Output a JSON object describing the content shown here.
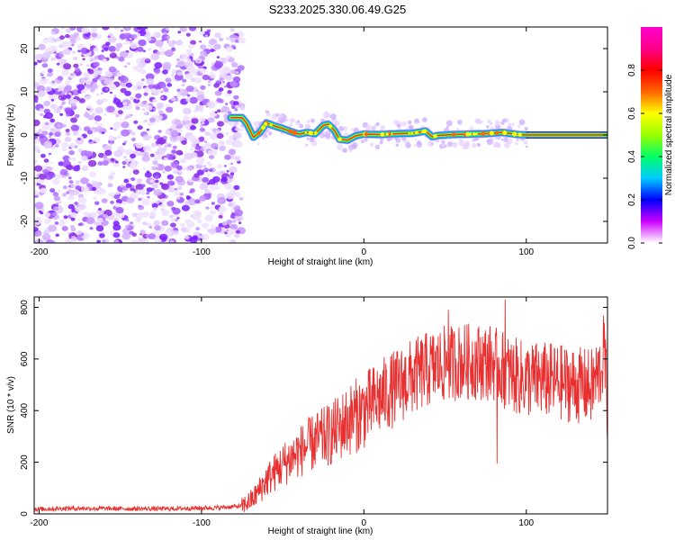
{
  "title": "S233.2025.330.06.49.G25",
  "chart_data": [
    {
      "type": "heatmap",
      "name": "spectrogram",
      "xlabel": "Height of straight line (km)",
      "ylabel": "Frequency (Hz)",
      "xlim": [
        -203,
        150
      ],
      "ylim": [
        -25,
        25
      ],
      "xticks": [
        -200,
        -100,
        0,
        100
      ],
      "yticks": [
        -20,
        -10,
        0,
        10,
        20
      ],
      "noise_region_x": [
        -203,
        -75
      ],
      "ridge": [
        [
          -82,
          4
        ],
        [
          -75,
          4
        ],
        [
          -72,
          2.6
        ],
        [
          -70,
          1
        ],
        [
          -68,
          -0.5
        ],
        [
          -64,
          0.6
        ],
        [
          -60,
          2.8
        ],
        [
          -56,
          2.2
        ],
        [
          -50,
          1.5
        ],
        [
          -45,
          0.8
        ],
        [
          -40,
          0.2
        ],
        [
          -35,
          0.6
        ],
        [
          -30,
          0.3
        ],
        [
          -25,
          2.2
        ],
        [
          -22,
          2.5
        ],
        [
          -18,
          1.0
        ],
        [
          -15,
          -1.0
        ],
        [
          -10,
          -1.2
        ],
        [
          -5,
          -0.2
        ],
        [
          0,
          0.2
        ],
        [
          10,
          0.1
        ],
        [
          20,
          0.3
        ],
        [
          30,
          0.4
        ],
        [
          38,
          0.9
        ],
        [
          42,
          -0.4
        ],
        [
          46,
          -0.1
        ],
        [
          55,
          0.1
        ],
        [
          65,
          0.2
        ],
        [
          75,
          0.3
        ],
        [
          85,
          0.6
        ],
        [
          95,
          0.1
        ],
        [
          100,
          0
        ]
      ],
      "ridge_line_from_km": 100,
      "colorbar": {
        "label": "Normalized spectral amplitude",
        "range": [
          0.0,
          1.0
        ],
        "ticks": [
          0.0,
          0.2,
          0.4,
          0.6,
          0.8
        ],
        "tick_labels": [
          "0.0",
          "0.2",
          "0.4",
          "0.6",
          "0.8"
        ],
        "colors": [
          "#ffffff",
          "#cc00ff",
          "#0000ff",
          "#00ccff",
          "#00ff66",
          "#99ff00",
          "#ffff00",
          "#ff6600",
          "#ff0000",
          "#ff0088",
          "#ff00cc"
        ]
      }
    },
    {
      "type": "line",
      "name": "snr",
      "xlabel": "Height of straight line (km)",
      "ylabel": "SNR (10 * v/v)",
      "xlim": [
        -203,
        150
      ],
      "ylim": [
        0,
        840
      ],
      "xticks": [
        -200,
        -100,
        0,
        100
      ],
      "yticks": [
        0,
        200,
        400,
        600,
        800
      ],
      "color": "#e83030",
      "envelope": [
        [
          -203,
          18
        ],
        [
          -180,
          22
        ],
        [
          -150,
          20
        ],
        [
          -120,
          20
        ],
        [
          -90,
          24
        ],
        [
          -75,
          30
        ],
        [
          -68,
          60
        ],
        [
          -60,
          130
        ],
        [
          -50,
          190
        ],
        [
          -40,
          240
        ],
        [
          -30,
          280
        ],
        [
          -20,
          310
        ],
        [
          -10,
          360
        ],
        [
          0,
          400
        ],
        [
          10,
          450
        ],
        [
          20,
          490
        ],
        [
          30,
          530
        ],
        [
          40,
          560
        ],
        [
          50,
          580
        ],
        [
          60,
          590
        ],
        [
          70,
          590
        ],
        [
          80,
          585
        ],
        [
          90,
          540
        ],
        [
          100,
          520
        ],
        [
          110,
          520
        ],
        [
          120,
          510
        ],
        [
          130,
          500
        ],
        [
          140,
          490
        ],
        [
          146,
          560
        ],
        [
          148,
          640
        ],
        [
          150,
          410
        ]
      ],
      "peaks": [
        [
          52,
          790
        ],
        [
          87,
          830
        ],
        [
          148,
          740
        ],
        [
          82,
          195
        ]
      ]
    }
  ]
}
